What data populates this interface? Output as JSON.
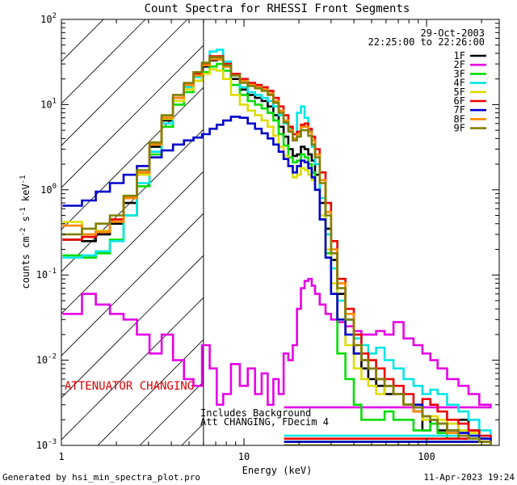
{
  "chart_data": {
    "type": "line",
    "title": "Count Spectra for RHESSI Front Segments",
    "xlabel": "Energy (keV)",
    "ylabel_parts": [
      "counts cm",
      "-2",
      " s",
      "-1",
      " keV",
      "-1"
    ],
    "xscale": "log",
    "yscale": "log",
    "xlim": [
      1,
      250
    ],
    "ylim": [
      0.001,
      100
    ],
    "x_ticks": [
      {
        "v": 1,
        "label": "1"
      },
      {
        "v": 10,
        "label": "10"
      },
      {
        "v": 100,
        "label": "100"
      }
    ],
    "y_ticks": [
      {
        "v": 0.001,
        "m": "10",
        "e": "-3"
      },
      {
        "v": 0.01,
        "m": "10",
        "e": "-2"
      },
      {
        "v": 0.1,
        "m": "10",
        "e": "-1"
      },
      {
        "v": 1,
        "m": "10",
        "e": "0"
      },
      {
        "v": 10,
        "m": "10",
        "e": "1"
      },
      {
        "v": 100,
        "m": "10",
        "e": "2"
      }
    ],
    "date": "29-Oct-2003",
    "time_range": "22:25:00 to 22:26:00",
    "hatch_region": {
      "x_from": 1,
      "x_to": 6
    },
    "attenuator_label": "ATTENUATOR CHANGING",
    "notes": [
      "Includes Background",
      "Att CHANGING, FDecim 4"
    ],
    "series": [
      {
        "name": "1F",
        "color": "#000000",
        "x": [
          1.2,
          1.4,
          1.7,
          2,
          2.4,
          2.8,
          3.3,
          3.8,
          4.4,
          5,
          5.6,
          6.2,
          6.8,
          7.4,
          8,
          9,
          10,
          11,
          12,
          13,
          14,
          15,
          16,
          17,
          18,
          19,
          20,
          21,
          22,
          23,
          24,
          25,
          27,
          29,
          31,
          34,
          38,
          42,
          46,
          50,
          56,
          62,
          70,
          80,
          90,
          100,
          110,
          120,
          140,
          160,
          180,
          210,
          240
        ],
        "y": [
          0.26,
          0.25,
          0.3,
          0.4,
          0.7,
          1.5,
          3.2,
          6.5,
          12,
          17,
          22,
          28,
          33,
          34,
          28,
          20,
          15,
          13,
          12,
          11,
          9.5,
          7.5,
          5.5,
          4.2,
          3,
          2.5,
          2.6,
          3.2,
          3,
          2.6,
          2.2,
          1.5,
          0.7,
          0.35,
          0.15,
          0.06,
          0.03,
          0.012,
          0.008,
          0.006,
          0.005,
          0.004,
          0.004,
          0.003,
          0.0025,
          0.0015,
          0.002,
          0.0015,
          0.0012,
          0.002,
          0.0015,
          0.0012,
          0.0011
        ]
      },
      {
        "name": "2F",
        "color": "#e600e6",
        "x": [
          1.2,
          1.4,
          1.7,
          2,
          2.4,
          2.8,
          3.3,
          3.8,
          4.4,
          5,
          5.6,
          6.2,
          6.8,
          7.4,
          8,
          9,
          10,
          11,
          12,
          13,
          14,
          15,
          16,
          17,
          18,
          19,
          20,
          21,
          22,
          23,
          24,
          25,
          27,
          29,
          31,
          34,
          38,
          42,
          46,
          50,
          56,
          62,
          70,
          80,
          90,
          100,
          110,
          120,
          140,
          160,
          180,
          210,
          240
        ],
        "y": [
          0.035,
          0.06,
          0.045,
          0.035,
          0.03,
          0.02,
          0.012,
          0.02,
          0.01,
          0.006,
          0.005,
          0.015,
          0.008,
          0.003,
          0.004,
          0.009,
          0.005,
          0.008,
          0.004,
          0.007,
          0.003,
          0.006,
          0.004,
          0.012,
          0.01,
          0.015,
          0.04,
          0.07,
          0.085,
          0.09,
          0.075,
          0.06,
          0.045,
          0.035,
          0.03,
          0.028,
          0.025,
          0.022,
          0.02,
          0.02,
          0.022,
          0.02,
          0.028,
          0.018,
          0.015,
          0.012,
          0.01,
          0.008,
          0.006,
          0.005,
          0.004,
          0.003,
          0.0028
        ]
      },
      {
        "name": "3F",
        "color": "#00dd00",
        "x": [
          1.2,
          1.4,
          1.7,
          2,
          2.4,
          2.8,
          3.3,
          3.8,
          4.4,
          5,
          5.6,
          6.2,
          6.8,
          7.4,
          8,
          9,
          10,
          11,
          12,
          13,
          14,
          15,
          16,
          17,
          18,
          19,
          20,
          21,
          22,
          23,
          24,
          25,
          27,
          29,
          31,
          34,
          38,
          42,
          46,
          50,
          56,
          62,
          70,
          80,
          90,
          100,
          110,
          120,
          140,
          160,
          180,
          210,
          240
        ],
        "y": [
          0.17,
          0.16,
          0.18,
          0.26,
          0.5,
          1.1,
          2.6,
          5.5,
          10,
          14,
          19,
          24,
          28,
          30,
          25,
          17,
          13,
          11,
          10,
          9,
          8,
          6.5,
          4.5,
          3.3,
          2.4,
          2.1,
          2.2,
          2.6,
          2.4,
          2,
          1.6,
          1,
          0.45,
          0.18,
          0.06,
          0.012,
          0.006,
          0.003,
          0.002,
          0.002,
          0.002,
          0.0025,
          0.002,
          0.002,
          0.0015,
          0.0015,
          0.0018,
          0.0014,
          0.0012,
          0.0015,
          0.0013,
          0.0012,
          0.0011
        ]
      },
      {
        "name": "4F",
        "color": "#00e6e6",
        "x": [
          1.2,
          1.4,
          1.7,
          2,
          2.4,
          2.8,
          3.3,
          3.8,
          4.4,
          5,
          5.6,
          6.2,
          6.8,
          7.4,
          8,
          9,
          10,
          11,
          12,
          13,
          14,
          15,
          16,
          17,
          18,
          19,
          20,
          21,
          22,
          23,
          24,
          25,
          27,
          29,
          31,
          34,
          38,
          42,
          46,
          50,
          56,
          62,
          70,
          80,
          90,
          100,
          110,
          120,
          140,
          160,
          180,
          210,
          240
        ],
        "y": [
          0.16,
          0.17,
          0.19,
          0.25,
          0.5,
          1.2,
          2.8,
          6,
          11,
          16,
          21,
          30,
          42,
          44,
          32,
          22,
          16,
          14,
          13,
          12,
          11,
          9.5,
          7.5,
          6,
          5.2,
          4.5,
          8,
          9.5,
          7,
          5,
          3.2,
          2,
          0.8,
          0.3,
          0.12,
          0.05,
          0.03,
          0.018,
          0.015,
          0.012,
          0.014,
          0.01,
          0.008,
          0.006,
          0.005,
          0.004,
          0.0045,
          0.004,
          0.003,
          0.0025,
          0.002,
          0.0015,
          0.0013
        ]
      },
      {
        "name": "5F",
        "color": "#dddd00",
        "x": [
          1.2,
          1.4,
          1.7,
          2,
          2.4,
          2.8,
          3.3,
          3.8,
          4.4,
          5,
          5.6,
          6.2,
          6.8,
          7.4,
          8,
          9,
          10,
          11,
          12,
          13,
          14,
          15,
          16,
          17,
          18,
          19,
          20,
          21,
          22,
          23,
          24,
          25,
          27,
          29,
          31,
          34,
          38,
          42,
          46,
          50,
          56,
          62,
          70,
          80,
          90,
          100,
          110,
          120,
          140,
          160,
          180,
          210,
          240
        ],
        "y": [
          0.42,
          0.3,
          0.33,
          0.45,
          0.8,
          1.5,
          3.4,
          6.8,
          11,
          15,
          19,
          23,
          26,
          25,
          20,
          13,
          10,
          8.5,
          7.5,
          6.5,
          5.5,
          4.3,
          3.2,
          2.5,
          1.9,
          1.4,
          1.5,
          1.8,
          1.7,
          1.5,
          1.3,
          1,
          0.5,
          0.2,
          0.08,
          0.03,
          0.015,
          0.008,
          0.006,
          0.005,
          0.004,
          0.005,
          0.004,
          0.003,
          0.003,
          0.002,
          0.0022,
          0.002,
          0.0018,
          0.0015,
          0.0014,
          0.0012,
          0.0011
        ]
      },
      {
        "name": "6F",
        "color": "#ee0000",
        "x": [
          1.2,
          1.4,
          1.7,
          2,
          2.4,
          2.8,
          3.3,
          3.8,
          4.4,
          5,
          5.6,
          6.2,
          6.8,
          7.4,
          8,
          9,
          10,
          11,
          12,
          13,
          14,
          15,
          16,
          17,
          18,
          19,
          20,
          21,
          22,
          23,
          24,
          25,
          27,
          29,
          31,
          34,
          38,
          42,
          46,
          50,
          56,
          62,
          70,
          80,
          90,
          100,
          110,
          120,
          140,
          160,
          180,
          210,
          240
        ],
        "y": [
          0.26,
          0.28,
          0.32,
          0.45,
          0.8,
          1.6,
          3.5,
          7,
          12,
          17,
          23,
          30,
          37,
          37,
          30,
          23,
          20,
          18,
          17,
          16,
          14.5,
          12,
          9.5,
          7.5,
          5.5,
          4.5,
          4.8,
          5.8,
          6,
          5.2,
          4.2,
          3,
          1.6,
          0.7,
          0.25,
          0.09,
          0.04,
          0.02,
          0.012,
          0.01,
          0.008,
          0.006,
          0.005,
          0.004,
          0.003,
          0.0035,
          0.003,
          0.0025,
          0.002,
          0.0018,
          0.0015,
          0.0013,
          0.0012
        ]
      },
      {
        "name": "7F",
        "color": "#0000cc",
        "x": [
          1.2,
          1.4,
          1.7,
          2,
          2.4,
          2.8,
          3.3,
          3.8,
          4.4,
          5,
          5.6,
          6.2,
          6.8,
          7.4,
          8,
          9,
          10,
          11,
          12,
          13,
          14,
          15,
          16,
          17,
          18,
          19,
          20,
          21,
          22,
          23,
          24,
          25,
          27,
          29,
          31,
          34,
          38,
          42,
          46,
          50,
          56,
          62,
          70,
          80,
          90,
          100,
          110,
          120,
          140,
          160,
          180,
          210,
          240
        ],
        "y": [
          0.65,
          0.75,
          0.95,
          1.2,
          1.5,
          1.9,
          2.4,
          2.9,
          3.4,
          3.8,
          4.1,
          4.5,
          5.2,
          5.8,
          6.5,
          7.2,
          7,
          6,
          5.2,
          4.6,
          4,
          3.4,
          2.8,
          2.3,
          1.9,
          1.6,
          1.9,
          2.2,
          2.1,
          1.8,
          1.4,
          1,
          0.45,
          0.16,
          0.06,
          0.03,
          0.02,
          0.012,
          0.01,
          0.008,
          0.006,
          0.005,
          0.004,
          0.003,
          0.003,
          0.0022,
          0.002,
          0.0018,
          0.0015,
          0.0014,
          0.0013,
          0.0012,
          0.0011
        ]
      },
      {
        "name": "8F",
        "color": "#ff8800",
        "x": [
          1.2,
          1.4,
          1.7,
          2,
          2.4,
          2.8,
          3.3,
          3.8,
          4.4,
          5,
          5.6,
          6.2,
          6.8,
          7.4,
          8,
          9,
          10,
          11,
          12,
          13,
          14,
          15,
          16,
          17,
          18,
          19,
          20,
          21,
          22,
          23,
          24,
          25,
          27,
          29,
          31,
          34,
          38,
          42,
          46,
          50,
          56,
          62,
          70,
          80,
          90,
          100,
          110,
          120,
          140,
          160,
          180,
          210,
          240
        ],
        "y": [
          0.38,
          0.3,
          0.32,
          0.42,
          0.8,
          1.6,
          3.4,
          7,
          12,
          17,
          22,
          29,
          34,
          34,
          28,
          22,
          19,
          17,
          16,
          15,
          13.5,
          11,
          8.5,
          6.5,
          5,
          4,
          4.5,
          5.5,
          5.5,
          4.8,
          3.8,
          2.6,
          1.3,
          0.55,
          0.2,
          0.08,
          0.035,
          0.015,
          0.01,
          0.008,
          0.006,
          0.005,
          0.004,
          0.003,
          0.0025,
          0.0022,
          0.002,
          0.0018,
          0.0014,
          0.0013,
          0.0012,
          0.0011,
          0.001
        ]
      },
      {
        "name": "9F",
        "color": "#808000",
        "x": [
          1.2,
          1.4,
          1.7,
          2,
          2.4,
          2.8,
          3.3,
          3.8,
          4.4,
          5,
          5.6,
          6.2,
          6.8,
          7.4,
          8,
          9,
          10,
          11,
          12,
          13,
          14,
          15,
          16,
          17,
          18,
          19,
          20,
          21,
          22,
          23,
          24,
          25,
          27,
          29,
          31,
          34,
          38,
          42,
          46,
          50,
          56,
          62,
          70,
          80,
          90,
          100,
          110,
          120,
          140,
          160,
          180,
          210,
          240
        ],
        "y": [
          0.3,
          0.35,
          0.4,
          0.5,
          0.85,
          1.7,
          3.6,
          7.5,
          13,
          18,
          24,
          31,
          36,
          36,
          29,
          22,
          18,
          16.5,
          15.5,
          14.5,
          13,
          10.5,
          8,
          6.2,
          4.8,
          3.8,
          4.2,
          5,
          5,
          4.3,
          3.4,
          2.4,
          1.2,
          0.5,
          0.18,
          0.07,
          0.03,
          0.015,
          0.01,
          0.008,
          0.006,
          0.005,
          0.004,
          0.003,
          0.0028,
          0.0022,
          0.002,
          0.0018,
          0.0015,
          0.0013,
          0.0012,
          0.0011,
          0.001
        ]
      }
    ]
  },
  "footer": {
    "generator": "Generated by hsi_min_spectra_plot.pro",
    "timestamp": "11-Apr-2023 19:24"
  }
}
